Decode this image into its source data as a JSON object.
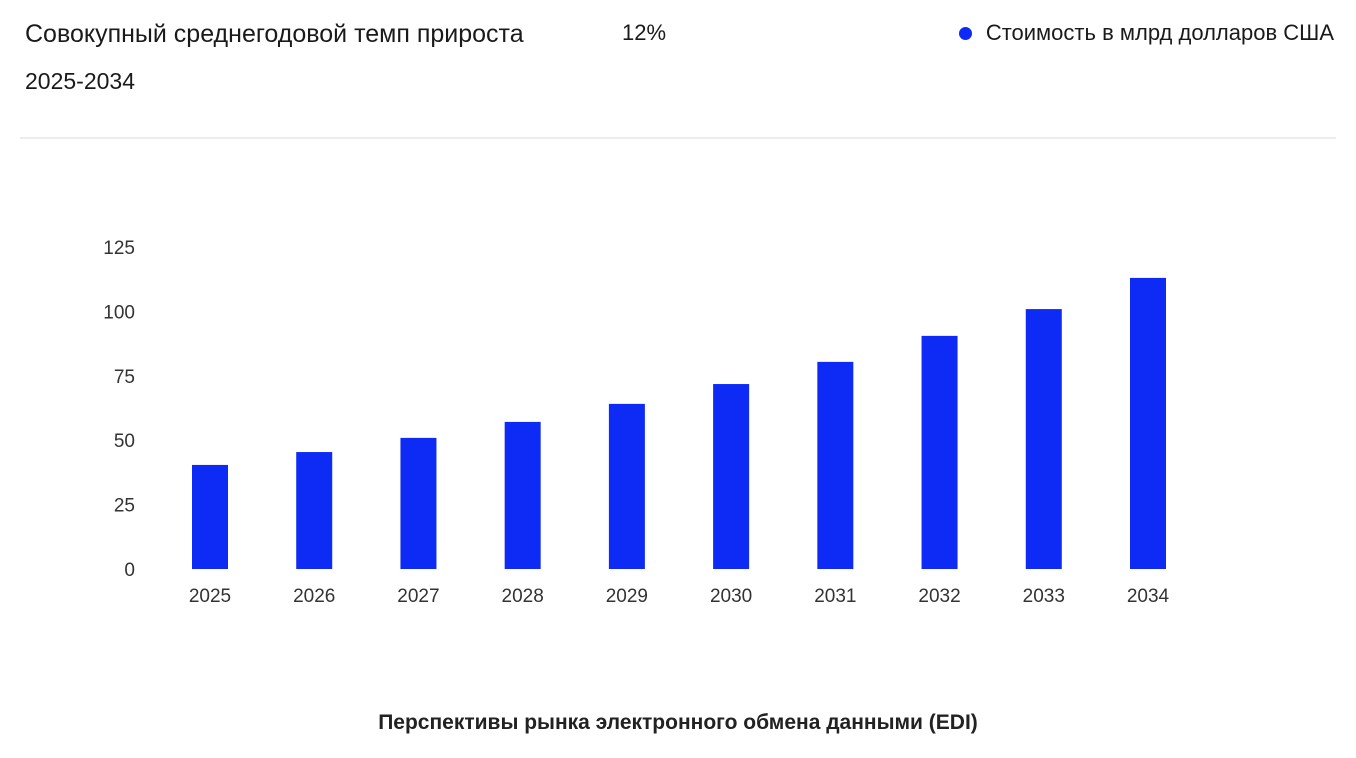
{
  "header": {
    "title": "Совокупный среднегодовой темп прироста",
    "cagr": "12%",
    "period": "2025-2034"
  },
  "legend": {
    "label": "Стоимость в млрд долларов США",
    "color": "#0d2bf5"
  },
  "footer": {
    "caption": "Перспективы рынка электронного обмена данными (EDI)"
  },
  "chart_data": {
    "type": "bar",
    "title": "Перспективы рынка электронного обмена данными (EDI)",
    "categories": [
      "2025",
      "2026",
      "2027",
      "2028",
      "2029",
      "2030",
      "2031",
      "2032",
      "2033",
      "2034"
    ],
    "series": [
      {
        "name": "Стоимость в млрд долларов США",
        "values": [
          40.4,
          45.4,
          50.9,
          57.1,
          64.1,
          71.8,
          80.4,
          90.5,
          100.9,
          113.0
        ],
        "color": "#0d2bf5"
      }
    ],
    "yticks": [
      "0",
      "25",
      "50",
      "75",
      "100",
      "125"
    ],
    "ylim": [
      0,
      125
    ],
    "grid": false,
    "legend_position": "top-right"
  }
}
